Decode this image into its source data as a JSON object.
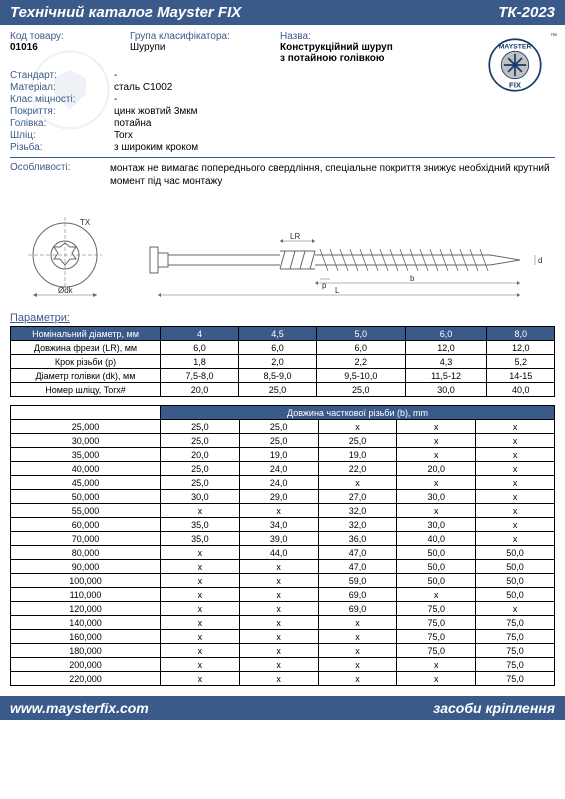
{
  "header": {
    "left": "Технічний каталог Mayster FIX",
    "right": "ТК-2023"
  },
  "logo": {
    "top": "MAYSTER",
    "bottom": "FIX",
    "tm": "™"
  },
  "info": {
    "code_label": "Код товару:",
    "code_value": "01016",
    "group_label": "Група класифікатора:",
    "group_value": "Шурупи",
    "name_label": "Назва:",
    "name_value1": "Конструкційний шуруп",
    "name_value2": "з потайною голівкою",
    "rows": [
      {
        "label": "Стандарт:",
        "value": "-"
      },
      {
        "label": "Матеріал:",
        "value": "сталь С1002"
      },
      {
        "label": "Клас міцності:",
        "value": "-"
      },
      {
        "label": "Покриття:",
        "value": "цинк жовтий 3мкм"
      },
      {
        "label": "Голівка:",
        "value": "потайна"
      },
      {
        "label": "Шліц:",
        "value": "Torx"
      },
      {
        "label": "Різьба:",
        "value": "з широким кроком"
      }
    ],
    "feature_label": "Особливості:",
    "feature_text": "монтаж не вимагає попереднього свердління, спеціальне покриття знижує необхідний крутний момент під час монтажу"
  },
  "diagram": {
    "tx": "TX",
    "lr": "LR",
    "p": "p",
    "b": "b",
    "L": "L",
    "d": "d",
    "dk": "Ødk"
  },
  "params_label": "Параметри:",
  "table1": {
    "headers": [
      "Номінальний діаметр, мм",
      "4",
      "4,5",
      "5,0",
      "6,0",
      "8,0"
    ],
    "rows": [
      {
        "label": "Довжина фрези (LR), мм",
        "cells": [
          "6,0",
          "6,0",
          "6,0",
          "12,0",
          "12,0"
        ]
      },
      {
        "label": "Крок різьби (р)",
        "cells": [
          "1,8",
          "2,0",
          "2,2",
          "4,3",
          "5,2"
        ]
      },
      {
        "label": "Діаметр голівки (dk), мм",
        "cells": [
          "7,5-8,0",
          "8,5-9,0",
          "9,5-10,0",
          "11,5-12",
          "14-15"
        ]
      },
      {
        "label": "Номер шліцу, Torx#",
        "cells": [
          "20,0",
          "25,0",
          "25,0",
          "30,0",
          "40,0"
        ]
      }
    ]
  },
  "table2": {
    "header_left": "Номінальна довжина, мм",
    "header_right": "Довжина часткової різьби (b), mm",
    "rows": [
      {
        "label": "25,000",
        "cells": [
          "25,0",
          "25,0",
          "x",
          "x",
          "x"
        ]
      },
      {
        "label": "30,000",
        "cells": [
          "25,0",
          "25,0",
          "25,0",
          "x",
          "x"
        ]
      },
      {
        "label": "35,000",
        "cells": [
          "20,0",
          "19,0",
          "19,0",
          "x",
          "x"
        ]
      },
      {
        "label": "40,000",
        "cells": [
          "25,0",
          "24,0",
          "22,0",
          "20,0",
          "x"
        ]
      },
      {
        "label": "45,000",
        "cells": [
          "25,0",
          "24,0",
          "x",
          "x",
          "x"
        ]
      },
      {
        "label": "50,000",
        "cells": [
          "30,0",
          "29,0",
          "27,0",
          "30,0",
          "x"
        ]
      },
      {
        "label": "55,000",
        "cells": [
          "x",
          "x",
          "32,0",
          "x",
          "x"
        ]
      },
      {
        "label": "60,000",
        "cells": [
          "35,0",
          "34,0",
          "32,0",
          "30,0",
          "x"
        ]
      },
      {
        "label": "70,000",
        "cells": [
          "35,0",
          "39,0",
          "36,0",
          "40,0",
          "x"
        ]
      },
      {
        "label": "80,000",
        "cells": [
          "x",
          "44,0",
          "47,0",
          "50,0",
          "50,0"
        ]
      },
      {
        "label": "90,000",
        "cells": [
          "x",
          "x",
          "47,0",
          "50,0",
          "50,0"
        ]
      },
      {
        "label": "100,000",
        "cells": [
          "x",
          "x",
          "59,0",
          "50,0",
          "50,0"
        ]
      },
      {
        "label": "110,000",
        "cells": [
          "x",
          "x",
          "69,0",
          "x",
          "50,0"
        ]
      },
      {
        "label": "120,000",
        "cells": [
          "x",
          "x",
          "69,0",
          "75,0",
          "x"
        ]
      },
      {
        "label": "140,000",
        "cells": [
          "x",
          "x",
          "x",
          "75,0",
          "75,0"
        ]
      },
      {
        "label": "160,000",
        "cells": [
          "x",
          "x",
          "x",
          "75,0",
          "75,0"
        ]
      },
      {
        "label": "180,000",
        "cells": [
          "x",
          "x",
          "x",
          "75,0",
          "75,0"
        ]
      },
      {
        "label": "200,000",
        "cells": [
          "x",
          "x",
          "x",
          "x",
          "75,0"
        ]
      },
      {
        "label": "220,000",
        "cells": [
          "x",
          "x",
          "x",
          "x",
          "75,0"
        ]
      }
    ]
  },
  "footer": {
    "left": "www.maysterfix.com",
    "right": "засоби кріплення"
  }
}
